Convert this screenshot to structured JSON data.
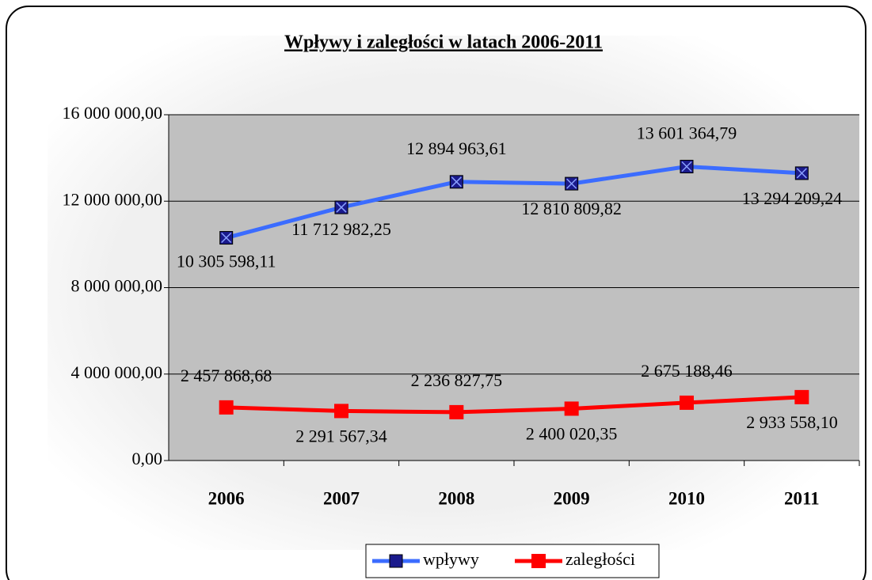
{
  "chart_data": {
    "type": "line",
    "title": "Wpływy i zaległości w latach 2006-2011",
    "categories": [
      "2006",
      "2007",
      "2008",
      "2009",
      "2010",
      "2011"
    ],
    "series": [
      {
        "name": "wpływy",
        "color": "#3b6cff",
        "values": [
          10305598.11,
          11712982.25,
          12894963.61,
          12810809.82,
          13601364.79,
          13294209.24
        ],
        "value_labels": [
          "10 305 598,11",
          "11 712 982,25",
          "12 894 963,61",
          "12 810 809,82",
          "13 601 364,79",
          "13 294 209,24"
        ]
      },
      {
        "name": "zaległości",
        "color": "#ff0000",
        "values": [
          2457868.68,
          2291567.34,
          2236827.75,
          2400020.35,
          2675188.46,
          2933558.1
        ],
        "value_labels": [
          "2 457 868,68",
          "2 291 567,34",
          "2 236 827,75",
          "2 400 020,35",
          "2 675 188,46",
          "2 933 558,10"
        ]
      }
    ],
    "ylim": [
      0,
      16000000
    ],
    "yticks": [
      {
        "value": 0,
        "label": "0,00"
      },
      {
        "value": 4000000,
        "label": "4 000 000,00"
      },
      {
        "value": 8000000,
        "label": "8 000 000,00"
      },
      {
        "value": 12000000,
        "label": "12 000 000,00"
      },
      {
        "value": 16000000,
        "label": "16 000 000,00"
      }
    ],
    "grid": true
  }
}
